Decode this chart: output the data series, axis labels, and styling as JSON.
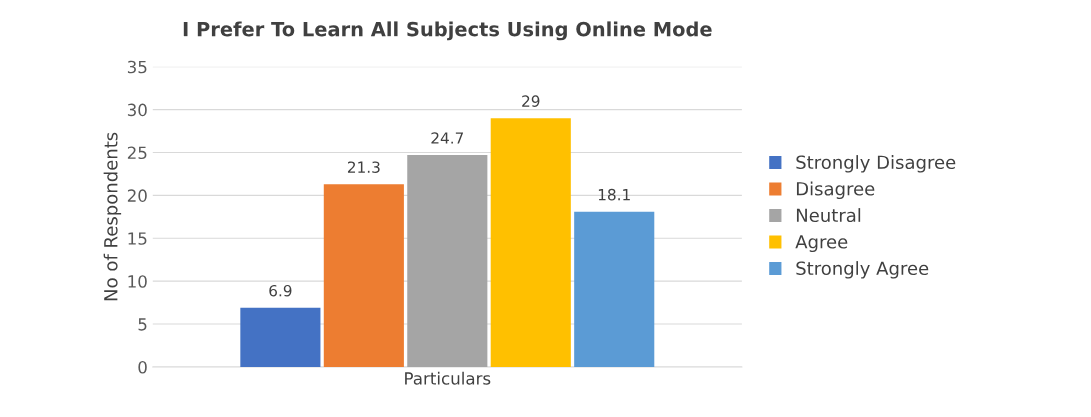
{
  "chart_data": {
    "type": "bar",
    "title": "I Prefer To Learn All Subjects Using Online Mode",
    "ylabel": "No of Respondents",
    "categories": [
      "Particulars"
    ],
    "series": [
      {
        "name": "Strongly Disagree",
        "color": "#4472c4",
        "values": [
          6.9
        ]
      },
      {
        "name": "Disagree",
        "color": "#ed7d31",
        "values": [
          21.3
        ]
      },
      {
        "name": "Neutral",
        "color": "#a5a5a5",
        "values": [
          24.7
        ]
      },
      {
        "name": "Agree",
        "color": "#ffc000",
        "values": [
          29
        ]
      },
      {
        "name": "Strongly Agree",
        "color": "#5b9bd5",
        "values": [
          18.1
        ]
      }
    ],
    "ylim": [
      0,
      35
    ],
    "yticks": [
      0,
      5,
      10,
      15,
      20,
      25,
      30,
      35
    ],
    "grid": "y",
    "legend": "right",
    "data_labels": true
  }
}
